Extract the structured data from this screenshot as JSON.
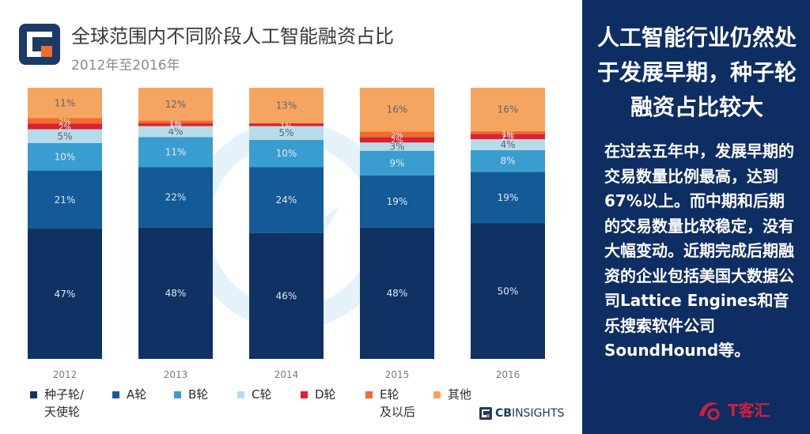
{
  "header": {
    "title": "全球范围内不同阶段人工智能融资占比",
    "subtitle": "2012年至2016年"
  },
  "chart_data": {
    "type": "bar",
    "stacked": true,
    "categories": [
      "2012",
      "2013",
      "2014",
      "2015",
      "2016"
    ],
    "series": [
      {
        "name": "种子轮/\n天使轮",
        "color": "#0f3263",
        "values": [
          47,
          48,
          46,
          48,
          50
        ]
      },
      {
        "name": "A轮",
        "color": "#135a96",
        "values": [
          21,
          22,
          24,
          19,
          19
        ]
      },
      {
        "name": "B轮",
        "color": "#3a9dd0",
        "values": [
          10,
          11,
          10,
          9,
          8
        ]
      },
      {
        "name": "C轮",
        "color": "#b8dbe9",
        "values": [
          5,
          4,
          5,
          3,
          4
        ]
      },
      {
        "name": "D轮",
        "color": "#d92334",
        "values": [
          2,
          1,
          1,
          2,
          2
        ]
      },
      {
        "name": "E轮\n及以后",
        "color": "#ef6c2d",
        "values": [
          2,
          1,
          0,
          2,
          1
        ]
      },
      {
        "name": "其他",
        "color": "#f6a561",
        "values": [
          11,
          12,
          13,
          16,
          16
        ]
      }
    ],
    "data_labels": [
      [
        "47%",
        "48%",
        "46%",
        "48%",
        "50%"
      ],
      [
        "21%",
        "22%",
        "24%",
        "19%",
        "19%"
      ],
      [
        "10%",
        "11%",
        "10%",
        "9%",
        "8%"
      ],
      [
        "5%",
        "4%",
        "5%",
        "3%",
        "4%"
      ],
      [
        "2%",
        "1%",
        "1%",
        "2%",
        "2%"
      ],
      [
        "2%",
        "1%",
        "",
        "2%",
        "1%"
      ],
      [
        "11%",
        "12%",
        "13%",
        "16%",
        "16%"
      ]
    ],
    "ylim": [
      0,
      100
    ],
    "legend_position": "bottom",
    "grid": false
  },
  "brand": {
    "bold": "CB",
    "thin": "INSIGHTS"
  },
  "sidebar": {
    "headline": "人工智能行业仍然处于发展早期，种子轮融资占比较大",
    "body": "在过去五年中，发展早期的交易数量比例最高，达到67%以上。而中期和后期的交易数量比较稳定，没有大幅变动。近期完成后期融资的企业包括美国大数据公司Lattice Engines和音乐搜索软件公司SoundHound等。"
  },
  "watermark": {
    "text": "T客汇"
  },
  "colors": {
    "sidebar_bg": "#0e2d63",
    "logo_blue": "#1c3a66",
    "logo_orange": "#ef6c2d"
  }
}
